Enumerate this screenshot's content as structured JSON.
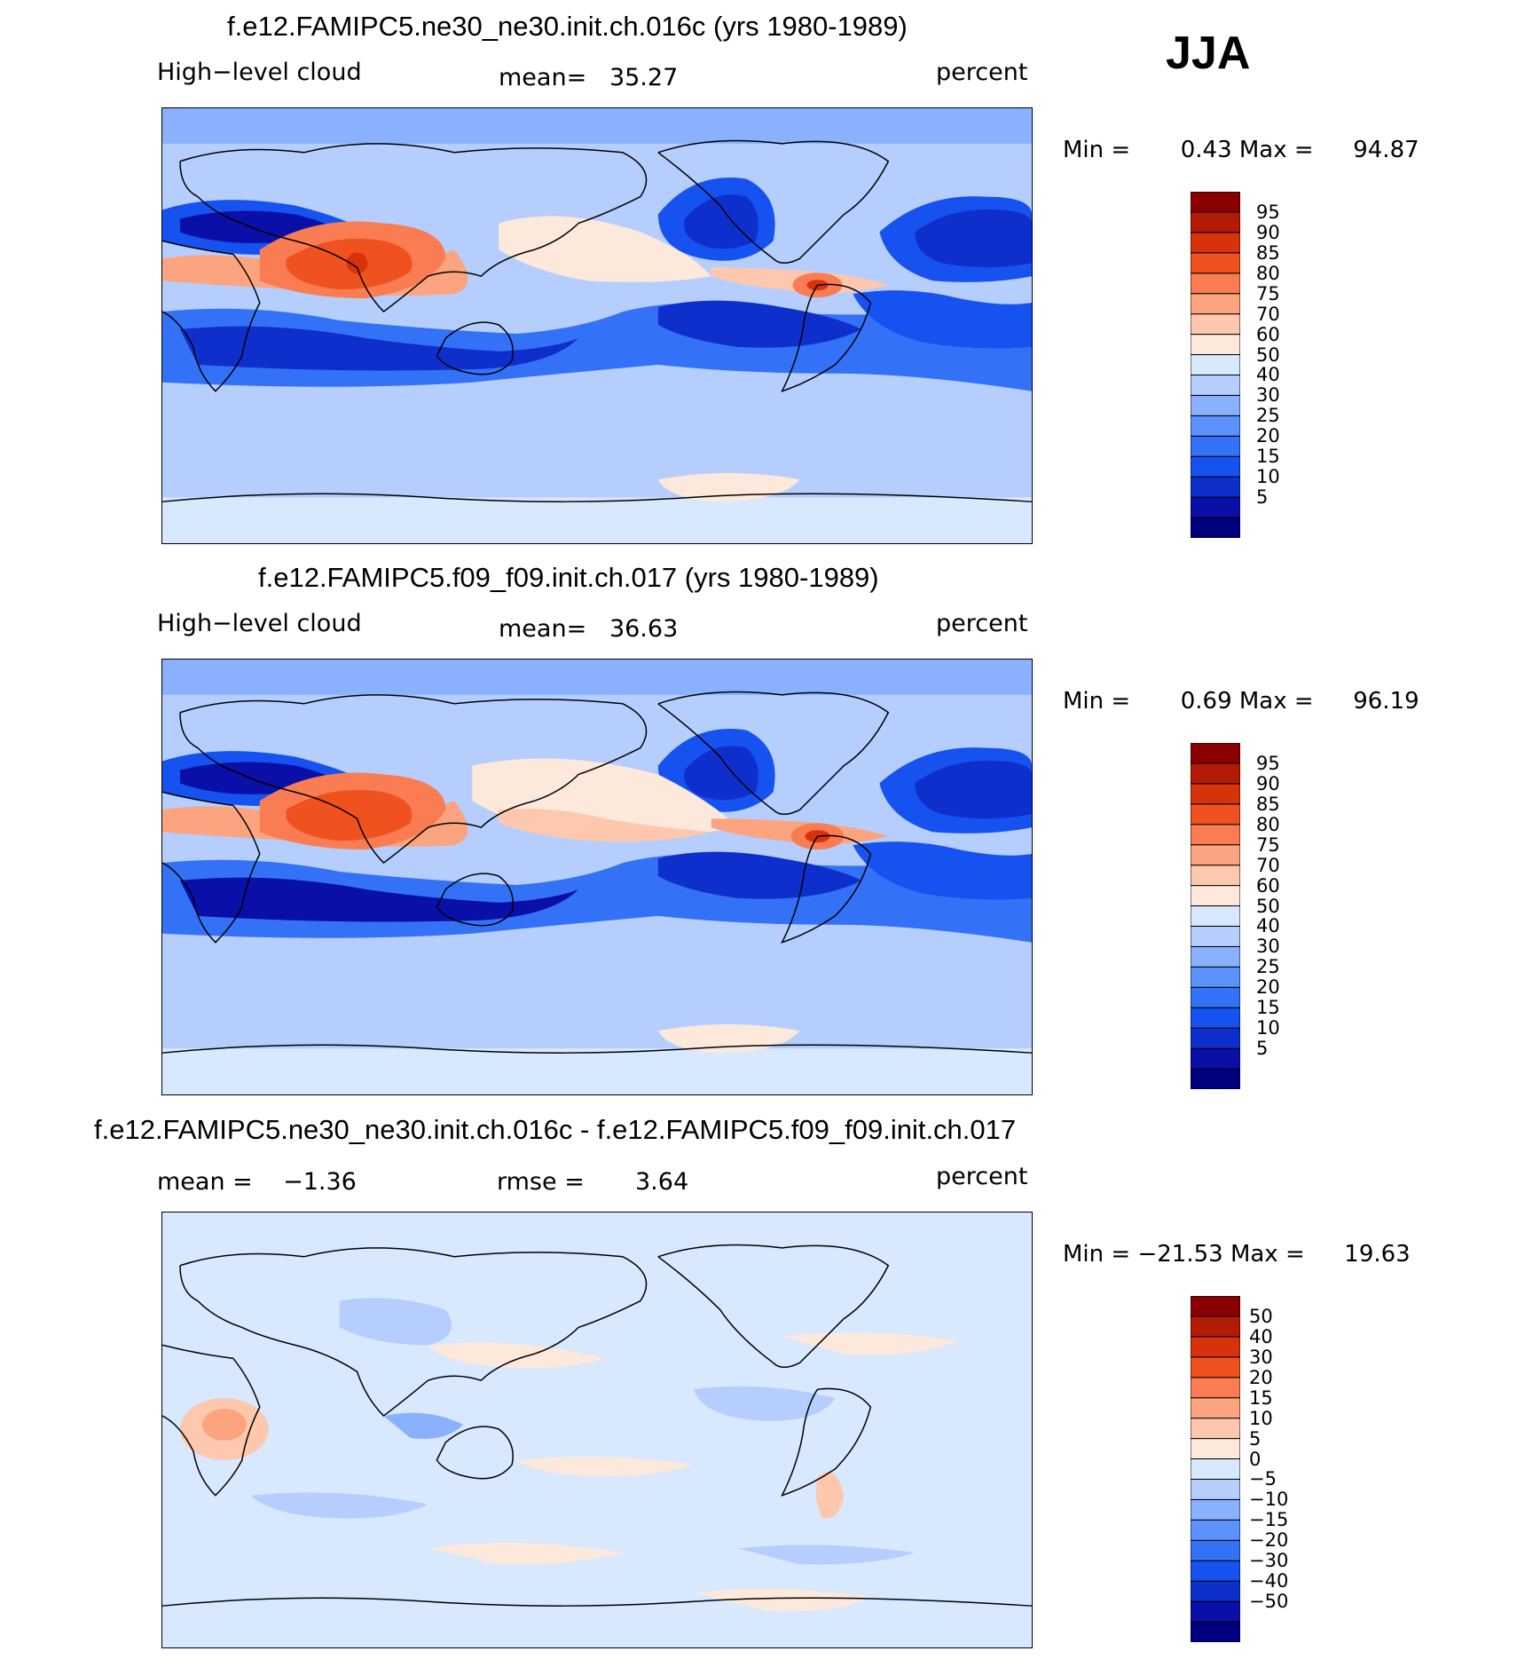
{
  "season": "JJA",
  "colors": {
    "abs_scale": [
      "#00007f",
      "#0a0fa8",
      "#0f2fcd",
      "#1652f0",
      "#3372f7",
      "#5b92fc",
      "#8ab1fe",
      "#b5cefe",
      "#d8e8fe",
      "#fde8dc",
      "#fdc8ae",
      "#fca47f",
      "#f97c52",
      "#f0521f",
      "#d8320c",
      "#b31b05",
      "#8b0000"
    ],
    "diff_scale": [
      "#00007f",
      "#0a0fa8",
      "#0f2fcd",
      "#1652f0",
      "#3372f7",
      "#5b92fc",
      "#8ab1fe",
      "#b5cefe",
      "#d8e8fe",
      "#fde8dc",
      "#fdc8ae",
      "#fca47f",
      "#f97c52",
      "#f0521f",
      "#d8320c",
      "#b31b05",
      "#8b0000"
    ]
  },
  "panels": [
    {
      "title": "f.e12.FAMIPC5.ne30_ne30.init.ch.016c (yrs 1980-1989)",
      "left_label": "High−level  cloud",
      "mean_label": "mean=",
      "mean_value": "35.27",
      "units": "percent",
      "min_label": "Min =",
      "min_value": "0.43",
      "max_label": "Max =",
      "max_value": "94.87",
      "colorbar_levels": [
        "95",
        "90",
        "85",
        "80",
        "75",
        "70",
        "60",
        "50",
        "40",
        "30",
        "25",
        "20",
        "15",
        "10",
        "5"
      ]
    },
    {
      "title": "f.e12.FAMIPC5.f09_f09.init.ch.017 (yrs 1980-1989)",
      "left_label": "High−level  cloud",
      "mean_label": "mean=",
      "mean_value": "36.63",
      "units": "percent",
      "min_label": "Min =",
      "min_value": "0.69",
      "max_label": "Max =",
      "max_value": "96.19",
      "colorbar_levels": [
        "95",
        "90",
        "85",
        "80",
        "75",
        "70",
        "60",
        "50",
        "40",
        "30",
        "25",
        "20",
        "15",
        "10",
        "5"
      ]
    },
    {
      "title": "f.e12.FAMIPC5.ne30_ne30.init.ch.016c - f.e12.FAMIPC5.f09_f09.init.ch.017",
      "mean_label": "mean =",
      "mean_value": "−1.36",
      "rmse_label": "rmse =",
      "rmse_value": "3.64",
      "units": "percent",
      "min_label": "Min =",
      "min_value": "−21.53",
      "max_label": "Max =",
      "max_value": "19.63",
      "colorbar_levels": [
        "50",
        "40",
        "30",
        "20",
        "15",
        "10",
        "5",
        "0",
        "−5",
        "−10",
        "−15",
        "−20",
        "−30",
        "−40",
        "−50"
      ]
    }
  ]
}
